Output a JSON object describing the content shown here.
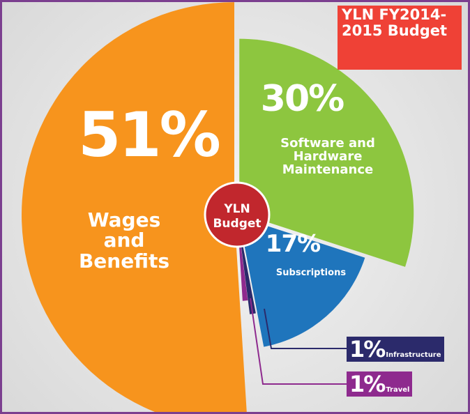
{
  "chart_data": {
    "type": "pie",
    "title": "YLN FY2014-2015 Budget",
    "center_label": "YLN Budget",
    "categories": [
      "Software and Hardware Maintenance",
      "Subscriptions",
      "Infrastructure",
      "Travel",
      "Wages and Benefits"
    ],
    "values": [
      30,
      17,
      1,
      1,
      51
    ],
    "value_labels": [
      "30%",
      "17%",
      "1%",
      "1%",
      "51%"
    ],
    "colors": [
      "#8dc63f",
      "#1f75bc",
      "#2b2a6b",
      "#8e2a8e",
      "#f7941d"
    ]
  }
}
